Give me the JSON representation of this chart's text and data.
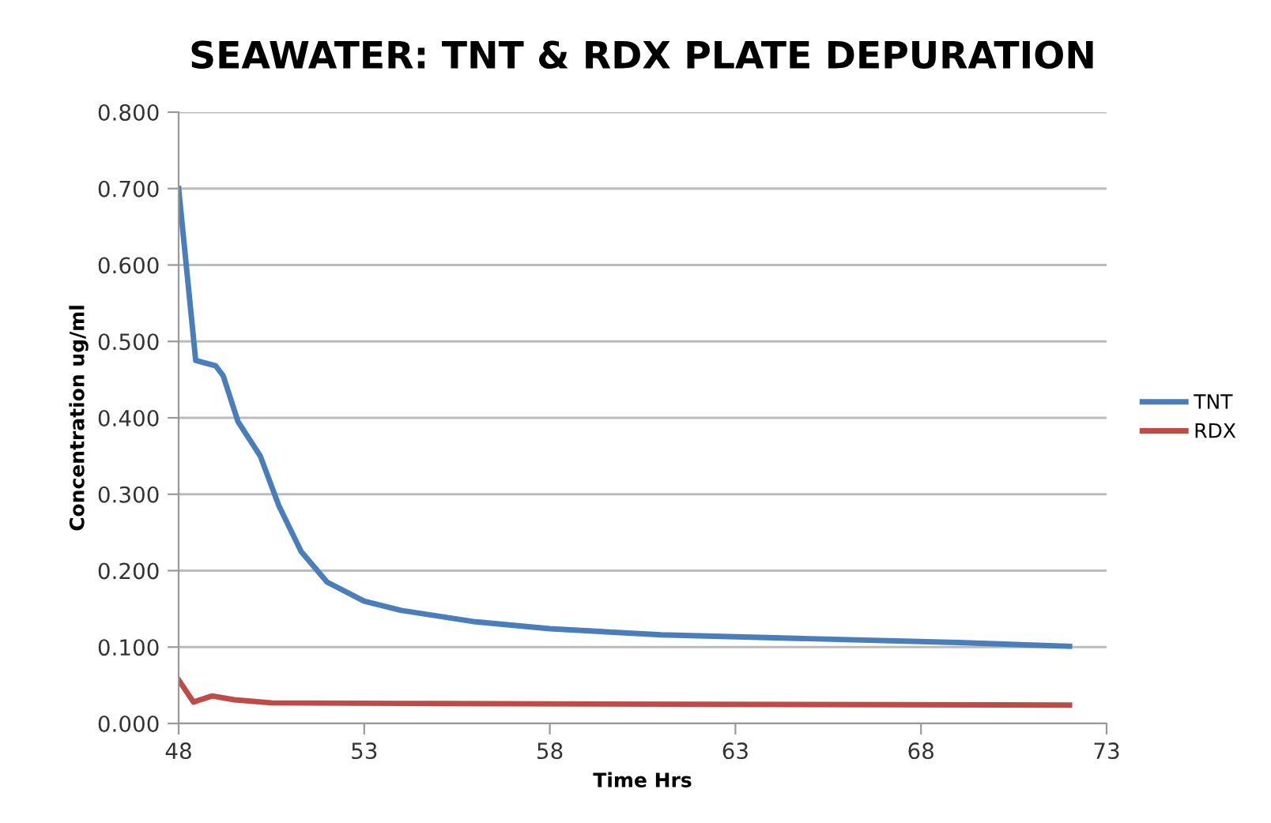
{
  "chart_data": {
    "type": "line",
    "title": "SEAWATER: TNT & RDX PLATE DEPURATION",
    "xlabel": "Time Hrs",
    "ylabel": "Concentration ug/ml",
    "series": [
      {
        "name": "TNT",
        "color": "#4a7ebb",
        "x": [
          48,
          48.46,
          49.0,
          49.2,
          49.6,
          50.2,
          50.7,
          51.3,
          52,
          53,
          54,
          56,
          58,
          61,
          65,
          69,
          72
        ],
        "values": [
          0.7,
          0.475,
          0.468,
          0.455,
          0.395,
          0.35,
          0.285,
          0.225,
          0.185,
          0.16,
          0.148,
          0.133,
          0.124,
          0.116,
          0.111,
          0.106,
          0.101
        ]
      },
      {
        "name": "RDX",
        "color": "#be4b48",
        "x": [
          48,
          48.4,
          48.9,
          49.5,
          50.5,
          55,
          72
        ],
        "values": [
          0.057,
          0.028,
          0.036,
          0.031,
          0.027,
          0.026,
          0.024
        ]
      }
    ],
    "xlim": [
      48,
      73
    ],
    "xticks": [
      48,
      53,
      58,
      63,
      68,
      73
    ],
    "ylim": [
      0,
      0.8
    ],
    "yticks": [
      {
        "value": 0,
        "label": "0.000"
      },
      {
        "value": 0.1,
        "label": "0.100"
      },
      {
        "value": 0.2,
        "label": "0.200"
      },
      {
        "value": 0.3,
        "label": "0.300"
      },
      {
        "value": 0.4,
        "label": "0.400"
      },
      {
        "value": 0.5,
        "label": "0.500"
      },
      {
        "value": 0.6,
        "label": "0.600"
      },
      {
        "value": 0.7,
        "label": "0.700"
      },
      {
        "value": 0.8,
        "label": "0.800"
      }
    ],
    "grid": "y",
    "legend": "right",
    "marker": "none",
    "line_style": "solid"
  }
}
